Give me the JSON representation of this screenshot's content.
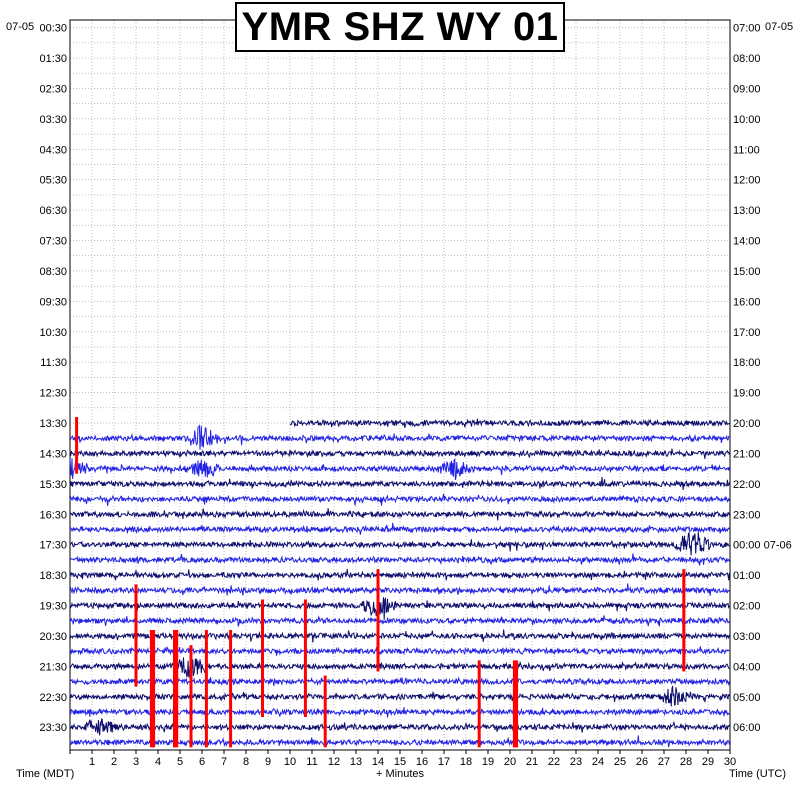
{
  "chart_data": {
    "type": "helicorder",
    "title": "YMR SHZ WY 01",
    "left_date": "07-05",
    "right_date": "07-05",
    "right_date_rollover": "07-06",
    "left_axis_label": "Time (MDT)",
    "right_axis_label": "Time (UTC)",
    "x_axis_label": "+ Minutes",
    "x_ticks": [
      "1",
      "2",
      "3",
      "4",
      "5",
      "6",
      "7",
      "8",
      "9",
      "10",
      "11",
      "12",
      "13",
      "14",
      "15",
      "16",
      "17",
      "18",
      "19",
      "20",
      "21",
      "22",
      "23",
      "24",
      "25",
      "26",
      "27",
      "28",
      "29",
      "30"
    ],
    "xlim": [
      0,
      30
    ],
    "row_minutes": 30,
    "rows_total": 48,
    "left_times": [
      "00:30",
      "01:30",
      "02:30",
      "03:30",
      "04:30",
      "05:30",
      "06:30",
      "07:30",
      "08:30",
      "09:30",
      "10:30",
      "11:30",
      "12:30",
      "13:30",
      "14:30",
      "15:30",
      "16:30",
      "17:30",
      "18:30",
      "19:30",
      "20:30",
      "21:30",
      "22:30",
      "23:30"
    ],
    "right_times": [
      "07:00",
      "08:00",
      "09:00",
      "10:00",
      "11:00",
      "12:00",
      "13:00",
      "14:00",
      "15:00",
      "16:00",
      "17:00",
      "18:00",
      "19:00",
      "20:00",
      "21:00",
      "22:00",
      "23:00",
      "00:00 07-06",
      "01:00",
      "02:00",
      "03:00",
      "04:00",
      "05:00",
      "06:00"
    ],
    "data_start": {
      "row": 26,
      "minute": 10
    },
    "trace_colors": [
      "#0d0d6e",
      "#2222e6"
    ],
    "clip_color": "#ff0000",
    "events": [
      {
        "row": 27,
        "minute": 6.0,
        "amplitude": 2.2
      },
      {
        "row": 29,
        "minute": 0.0,
        "amplitude": 1.8
      },
      {
        "row": 29,
        "minute": 6.0,
        "amplitude": 1.3
      },
      {
        "row": 29,
        "minute": 17.5,
        "amplitude": 1.4
      },
      {
        "row": 34,
        "minute": 28.3,
        "amplitude": 2.5
      },
      {
        "row": 38,
        "minute": 14.0,
        "amplitude": 2.0
      },
      {
        "row": 42,
        "minute": 5.5,
        "amplitude": 2.0
      },
      {
        "row": 44,
        "minute": 27.5,
        "amplitude": 1.6
      },
      {
        "row": 46,
        "minute": 1.3,
        "amplitude": 1.5
      }
    ],
    "clipped_spikes": [
      {
        "minute": 0.3,
        "row_from": 26,
        "row_to": 29
      },
      {
        "minute": 3.0,
        "row_from": 37,
        "row_to": 43
      },
      {
        "minute": 3.7,
        "row_from": 40,
        "row_to": 47
      },
      {
        "minute": 3.8,
        "row_from": 40,
        "row_to": 47
      },
      {
        "minute": 4.75,
        "row_from": 40,
        "row_to": 47
      },
      {
        "minute": 4.85,
        "row_from": 40,
        "row_to": 47
      },
      {
        "minute": 5.5,
        "row_from": 41,
        "row_to": 47
      },
      {
        "minute": 6.2,
        "row_from": 40,
        "row_to": 47
      },
      {
        "minute": 7.3,
        "row_from": 40,
        "row_to": 47
      },
      {
        "minute": 8.75,
        "row_from": 38,
        "row_to": 45
      },
      {
        "minute": 10.7,
        "row_from": 38,
        "row_to": 45
      },
      {
        "minute": 11.6,
        "row_from": 43,
        "row_to": 47
      },
      {
        "minute": 14.0,
        "row_from": 36,
        "row_to": 42
      },
      {
        "minute": 18.6,
        "row_from": 42,
        "row_to": 47
      },
      {
        "minute": 20.2,
        "row_from": 42,
        "row_to": 47
      },
      {
        "minute": 20.3,
        "row_from": 42,
        "row_to": 47
      },
      {
        "minute": 27.9,
        "row_from": 36,
        "row_to": 42
      }
    ],
    "grid": true
  }
}
